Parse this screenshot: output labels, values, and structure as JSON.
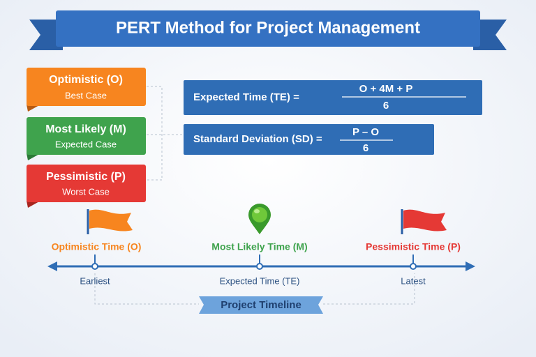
{
  "title": "PERT Method for Project Management",
  "estimates": [
    {
      "label": "Optimistic (O)",
      "sub": "Best Case"
    },
    {
      "label": "Most Likely (M)",
      "sub": "Expected Case"
    },
    {
      "label": "Pessimistic (P)",
      "sub": "Worst Case"
    }
  ],
  "formulas": [
    {
      "label": "Expected Time (TE) =",
      "numerator": "O + 4M + P",
      "denominator": "6"
    },
    {
      "label": "Standard Deviation (SD) =",
      "numerator": "P – O",
      "denominator": "6"
    }
  ],
  "timeline": {
    "markers": [
      {
        "label": "Optimistic Time (O)",
        "sub": "Earliest"
      },
      {
        "label": "Most Likely Time (M)",
        "sub": "Expected Time (TE)"
      },
      {
        "label": "Pessimistic Time (P)",
        "sub": "Latest"
      }
    ],
    "caption": "Project Timeline"
  }
}
